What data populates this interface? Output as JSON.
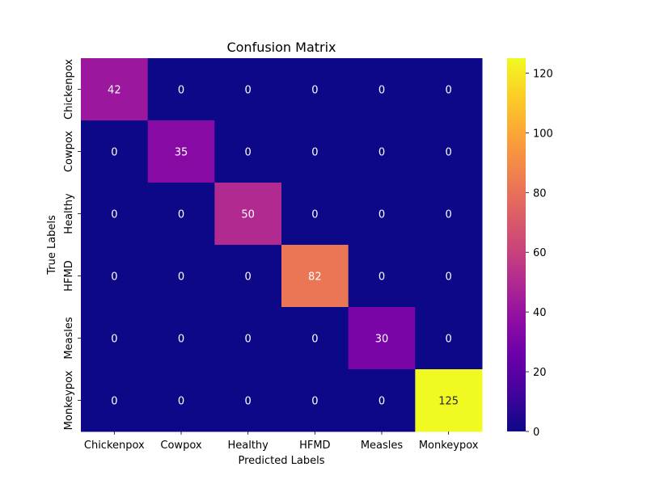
{
  "chart_data": {
    "type": "heatmap",
    "title": "Confusion Matrix",
    "xlabel": "Predicted Labels",
    "ylabel": "True Labels",
    "x_categories": [
      "Chickenpox",
      "Cowpox",
      "Healthy",
      "HFMD",
      "Measles",
      "Monkeypox"
    ],
    "y_categories": [
      "Chickenpox",
      "Cowpox",
      "Healthy",
      "HFMD",
      "Measles",
      "Monkeypox"
    ],
    "values": [
      [
        42,
        0,
        0,
        0,
        0,
        0
      ],
      [
        0,
        35,
        0,
        0,
        0,
        0
      ],
      [
        0,
        0,
        50,
        0,
        0,
        0
      ],
      [
        0,
        0,
        0,
        82,
        0,
        0
      ],
      [
        0,
        0,
        0,
        0,
        30,
        0
      ],
      [
        0,
        0,
        0,
        0,
        0,
        125
      ]
    ],
    "annotated": true,
    "colormap": "plasma",
    "colorbar": {
      "vmin": 0,
      "vmax": 125,
      "ticks": [
        0,
        20,
        40,
        60,
        80,
        100,
        120
      ]
    }
  }
}
